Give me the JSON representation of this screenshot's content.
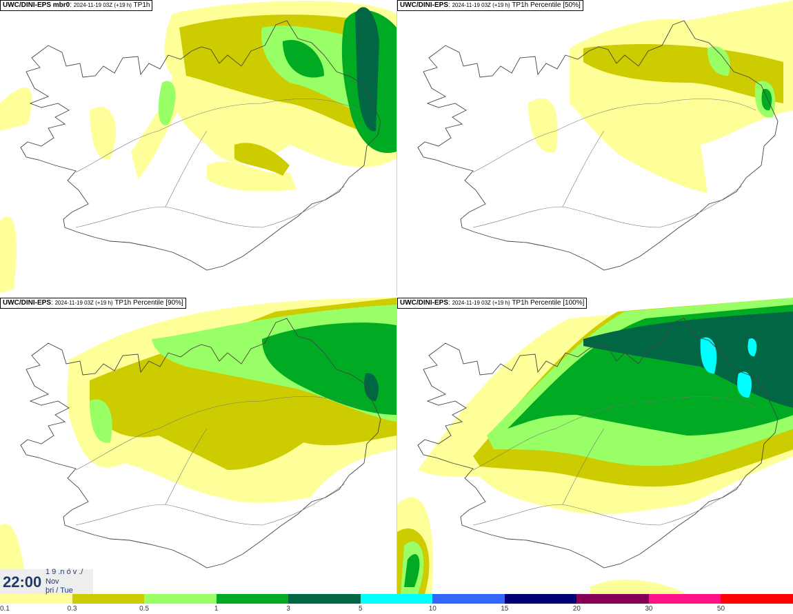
{
  "panels": [
    {
      "id": "mbr0",
      "model": "UWC/DINI-EPS mbr0",
      "date": "2024-11-19 03Z (+19 h)",
      "field": "TP1h"
    },
    {
      "id": "p50",
      "model": "UWC/DINI-EPS",
      "date": "2024-11-19 03Z (+19 h)",
      "field": "TP1h Percentile [50%]"
    },
    {
      "id": "p90",
      "model": "UWC/DINI-EPS",
      "date": "2024-11-19 03Z (+19 h)",
      "field": "TP1h Percentile [90%]"
    },
    {
      "id": "p100",
      "model": "UWC/DINI-EPS",
      "date": "2024-11-19 03Z (+19 h)",
      "field": "TP1h Percentile [100%]"
    }
  ],
  "time": {
    "clock": "22:00",
    "line1": "1 9 .n ó v ./",
    "line2": "Nov",
    "line3": "þri / Tue"
  },
  "legend": {
    "colors": [
      "#ffff99",
      "#cccc00",
      "#99ff66",
      "#00aa22",
      "#006644",
      "#00ffff",
      "#3366ff",
      "#000077",
      "#880055",
      "#ff1188",
      "#ff0000"
    ],
    "labels": [
      "0.1",
      "0.3",
      "0.5",
      "1",
      "3",
      "5",
      "10",
      "15",
      "20",
      "30",
      "50"
    ]
  }
}
